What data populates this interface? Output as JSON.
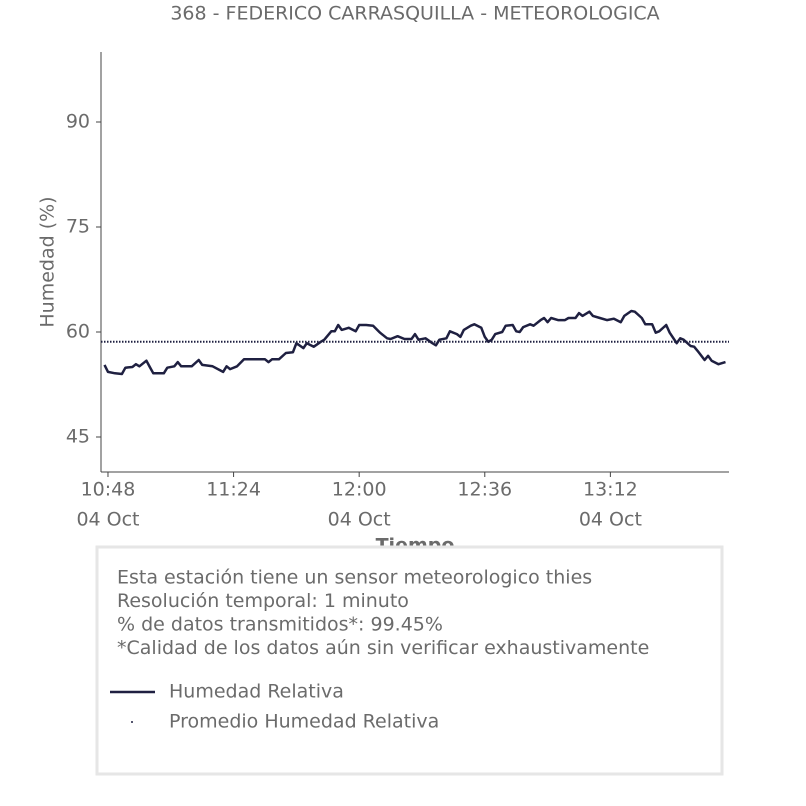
{
  "chart_data": {
    "type": "line",
    "title": "368 - FEDERICO CARRASQUILLA - METEOROLOGICA",
    "xlabel": "Tiempo",
    "ylabel": "Humedad (%)",
    "x": [
      "10:47",
      "10:48",
      "10:50",
      "10:52",
      "10:53",
      "10:55",
      "10:56",
      "10:57",
      "10:59",
      "11:00",
      "11:01",
      "11:04",
      "11:05",
      "11:07",
      "11:08",
      "11:09",
      "11:12",
      "11:14",
      "11:15",
      "11:18",
      "11:21",
      "11:22",
      "11:23",
      "11:25",
      "11:27",
      "11:33",
      "11:34",
      "11:35",
      "11:37",
      "11:39",
      "11:41",
      "11:42",
      "11:44",
      "11:45",
      "11:47",
      "11:49",
      "11:50",
      "11:52",
      "11:53",
      "11:54",
      "11:55",
      "11:57",
      "11:59",
      "12:00",
      "12:02",
      "12:04",
      "12:06",
      "12:08",
      "12:09",
      "12:11",
      "12:13",
      "12:15",
      "12:16",
      "12:17",
      "12:19",
      "12:21",
      "12:22",
      "12:23",
      "12:25",
      "12:26",
      "12:28",
      "12:29",
      "12:30",
      "12:32",
      "12:33",
      "12:35",
      "12:36",
      "12:37",
      "12:38",
      "12:39",
      "12:41",
      "12:42",
      "12:44",
      "12:45",
      "12:46",
      "12:47",
      "12:49",
      "12:50",
      "12:52",
      "12:53",
      "12:54",
      "12:55",
      "12:57",
      "12:59",
      "13:00",
      "13:02",
      "13:03",
      "13:04",
      "13:06",
      "13:07",
      "13:09",
      "13:11",
      "13:13",
      "13:15",
      "13:16",
      "13:18",
      "13:19",
      "13:21",
      "13:22",
      "13:24",
      "13:25",
      "13:26",
      "13:28",
      "13:29",
      "13:31",
      "13:32",
      "13:33",
      "13:35",
      "13:36",
      "13:37",
      "13:39",
      "13:40",
      "13:41",
      "13:43",
      "13:45"
    ],
    "series": [
      {
        "name": "Humedad Relativa",
        "color": "#1f2041",
        "values": [
          55.3,
          54.3,
          54.1,
          54,
          54.9,
          55,
          55.4,
          55.1,
          55.9,
          55,
          54.1,
          54.1,
          54.9,
          55.1,
          55.7,
          55.1,
          55.1,
          56,
          55.3,
          55.1,
          54.3,
          55.1,
          54.7,
          55.1,
          56.1,
          56.1,
          55.7,
          56.1,
          56.1,
          57,
          57.1,
          58.4,
          57.7,
          58.4,
          57.9,
          58.6,
          58.9,
          60.1,
          60.1,
          61,
          60.3,
          60.6,
          60.1,
          61,
          61,
          60.9,
          59.9,
          59.1,
          59,
          59.4,
          59,
          59,
          59.7,
          58.9,
          59.1,
          58.4,
          58.1,
          58.9,
          59.1,
          60.1,
          59.7,
          59.3,
          60.3,
          60.9,
          61.1,
          60.6,
          59.3,
          58.6,
          58.9,
          59.7,
          60,
          60.9,
          61,
          60.1,
          60,
          60.7,
          61.1,
          60.9,
          61.7,
          62,
          61.4,
          62,
          61.7,
          61.7,
          62,
          62,
          62.7,
          62.3,
          62.9,
          62.3,
          62,
          61.7,
          61.9,
          61.4,
          62.3,
          63,
          62.9,
          62,
          61.1,
          61.1,
          59.9,
          60.1,
          61,
          59.9,
          58.4,
          59.1,
          58.9,
          58,
          57.9,
          57.3,
          56,
          56.6,
          55.9,
          55.4,
          55.7
        ]
      }
    ],
    "average": {
      "name": "Promedio Humedad Relativa",
      "color": "#1f2041",
      "value": 58.6
    },
    "xlim": [
      "10:46",
      "13:46"
    ],
    "xticks": [
      {
        "value": "10:48",
        "label": "10:48",
        "date": "04 Oct"
      },
      {
        "value": "11:24",
        "label": "11:24"
      },
      {
        "value": "12:00",
        "label": "12:00",
        "date": "04 Oct"
      },
      {
        "value": "12:36",
        "label": "12:36"
      },
      {
        "value": "13:12",
        "label": "13:12",
        "date": "04 Oct"
      }
    ],
    "ylim": [
      40,
      100
    ],
    "yticks": [
      45,
      60,
      75,
      90
    ],
    "info": [
      "Esta estación tiene un sensor meteorologico thies",
      "Resolución temporal: 1 minuto",
      "% de datos transmitidos*: 99.45%",
      "*Calidad de los datos aún sin verificar exhaustivamente"
    ]
  }
}
